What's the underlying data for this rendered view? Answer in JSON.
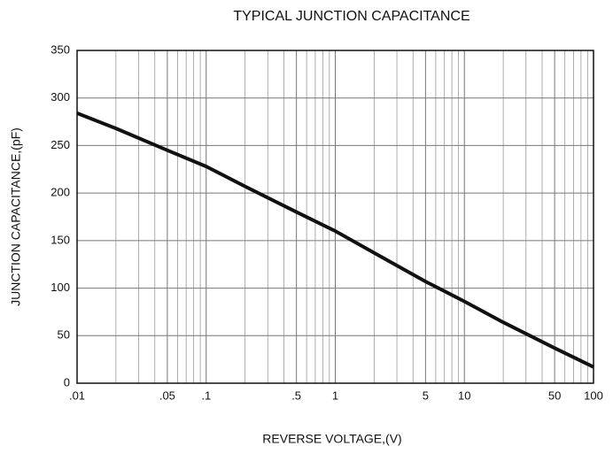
{
  "chart_data": {
    "type": "line",
    "title": "TYPICAL JUNCTION CAPACITANCE",
    "x_label": "REVERSE VOLTAGE,(V)",
    "y_label": "JUNCTION CAPACITANCE,(pF)",
    "x_scale": "log",
    "grid": true,
    "xlim": [
      0.01,
      100
    ],
    "ylim": [
      0,
      350
    ],
    "xticks": [
      {
        "value": 0.01,
        "label": ".01"
      },
      {
        "value": 0.05,
        "label": ".05"
      },
      {
        "value": 0.1,
        "label": ".1"
      },
      {
        "value": 0.5,
        "label": ".5"
      },
      1,
      5,
      10,
      50,
      100
    ],
    "xminor_ticks": [
      0.02,
      0.03,
      0.04,
      0.06,
      0.07,
      0.08,
      0.09,
      0.2,
      0.3,
      0.4,
      0.6,
      0.7,
      0.8,
      0.9,
      2,
      3,
      4,
      6,
      7,
      8,
      9,
      20,
      30,
      40,
      60,
      70,
      80,
      90
    ],
    "yticks": [
      0,
      50,
      100,
      150,
      200,
      250,
      300,
      350
    ],
    "x": [
      0.01,
      0.02,
      0.05,
      0.1,
      0.2,
      0.5,
      1,
      2,
      5,
      10,
      20,
      50,
      100
    ],
    "series": [
      {
        "color": "#111111",
        "values": [
          284,
          268,
          245,
          228,
          207,
          180,
          160,
          137,
          107,
          86,
          64,
          37,
          17
        ]
      }
    ]
  }
}
